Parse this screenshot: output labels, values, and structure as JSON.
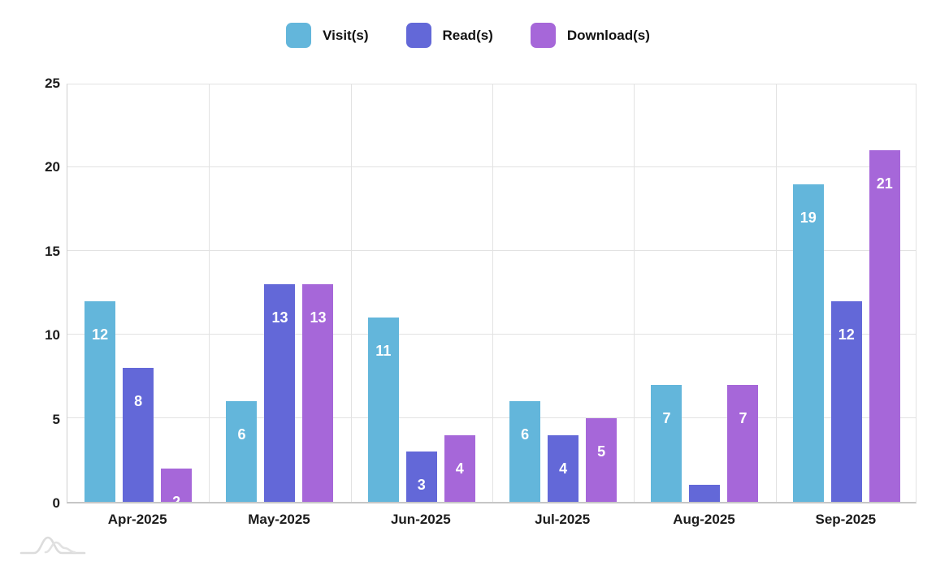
{
  "chart_data": {
    "type": "bar",
    "title": "",
    "xlabel": "",
    "ylabel": "",
    "categories": [
      "Apr-2025",
      "May-2025",
      "Jun-2025",
      "Jul-2025",
      "Aug-2025",
      "Sep-2025"
    ],
    "series": [
      {
        "name": "Visit(s)",
        "color": "#63b6db",
        "values": [
          12,
          6,
          11,
          6,
          7,
          19
        ]
      },
      {
        "name": "Read(s)",
        "color": "#6368d8",
        "values": [
          8,
          13,
          3,
          4,
          1,
          12
        ]
      },
      {
        "name": "Download(s)",
        "color": "#a667d9",
        "values": [
          2,
          13,
          4,
          5,
          7,
          21
        ]
      }
    ],
    "ylim": [
      0,
      25
    ],
    "yticks": [
      0,
      5,
      10,
      15,
      20,
      25
    ],
    "grid": "on",
    "legend_position": "top-center",
    "value_label_color": "#ffffff",
    "note_hidden_labels": "value labels are clipped when bar is shorter than label offset (Apr Download '2' half-clipped, Aug Read '1' hidden)"
  },
  "colors": {
    "grid": "#e2e2e2",
    "axis_line": "#c6c6c6",
    "axis_text": "#1c1c1c",
    "background": "#ffffff",
    "logo": "#bdbdbd"
  }
}
